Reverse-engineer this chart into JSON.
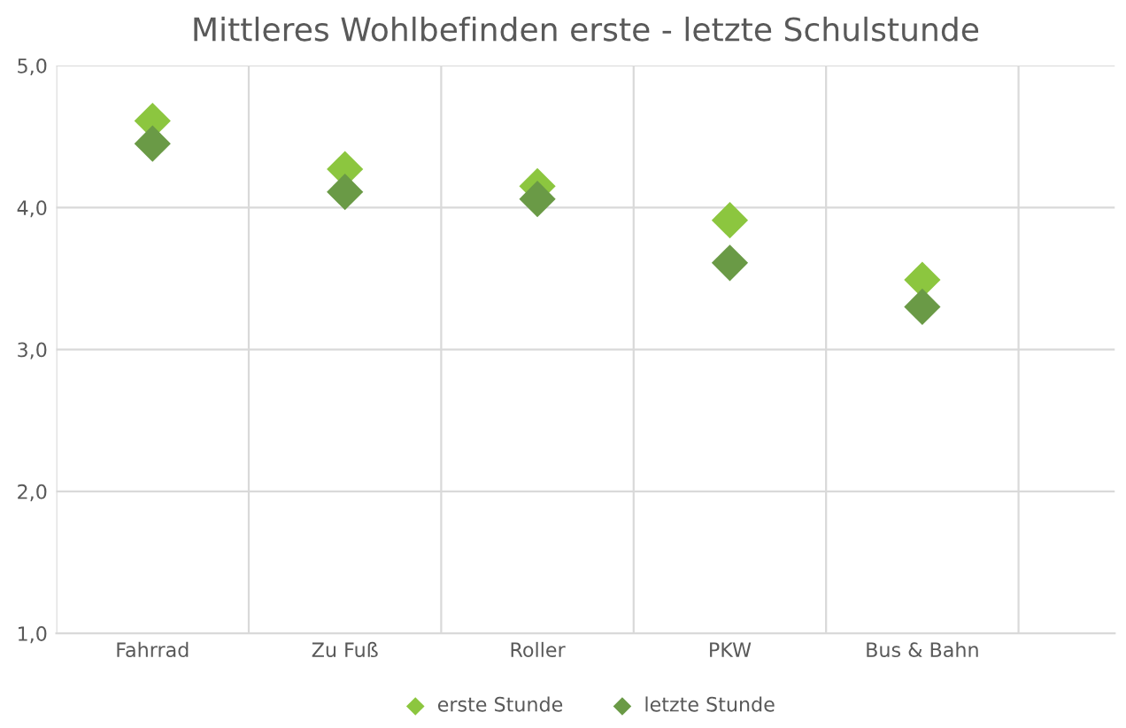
{
  "chart_data": {
    "type": "scatter",
    "title": "Mittleres Wohlbefinden erste - letzte Schulstunde",
    "categories": [
      "Fahrrad",
      "Zu Fuß",
      "Roller",
      "PKW",
      "Bus & Bahn"
    ],
    "series": [
      {
        "name": "erste Stunde",
        "color": "#8cc63f",
        "values": [
          4.61,
          4.27,
          4.15,
          3.91,
          3.49
        ]
      },
      {
        "name": "letzte Stunde",
        "color": "#6a9a46",
        "values": [
          4.45,
          4.11,
          4.06,
          3.61,
          3.3
        ]
      }
    ],
    "ylim": [
      1,
      5
    ],
    "yticks": [
      {
        "value": 1,
        "label": "1,0"
      },
      {
        "value": 2,
        "label": "2,0"
      },
      {
        "value": 3,
        "label": "3,0"
      },
      {
        "value": 4,
        "label": "4,0"
      },
      {
        "value": 5,
        "label": "5,0"
      }
    ],
    "grid": true,
    "legend": "bottom",
    "marker": "diamond"
  }
}
